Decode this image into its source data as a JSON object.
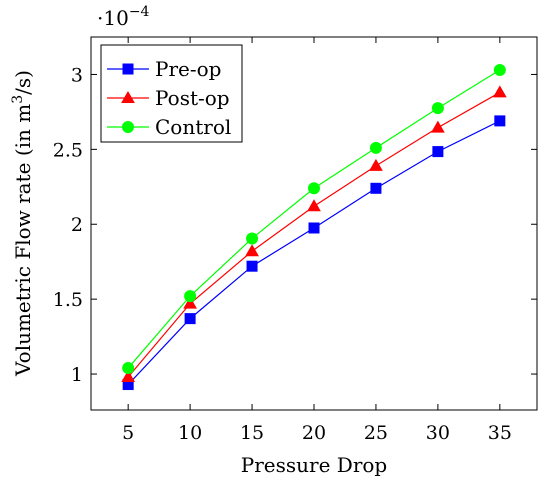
{
  "chart_data": {
    "type": "line",
    "title": "",
    "xlabel": "Pressure Drop",
    "ylabel_prefix": "Volumetric Flow rate (in m",
    "ylabel_sup": "3",
    "ylabel_suffix": "/s)",
    "y_scale_prefix": "·10",
    "y_scale_exp": "−4",
    "x": [
      5,
      10,
      15,
      20,
      25,
      30,
      35
    ],
    "x_tick_labels": [
      "5",
      "10",
      "15",
      "20",
      "25",
      "30",
      "35"
    ],
    "y_ticks": [
      1,
      1.5,
      2,
      2.5,
      3
    ],
    "y_tick_labels": [
      "1",
      "1.5",
      "2",
      "2.5",
      "3"
    ],
    "xlim": [
      2,
      38
    ],
    "ylim": [
      0.76,
      3.25
    ],
    "legend_position": "top-left",
    "grid": false,
    "series": [
      {
        "name": "Pre-op",
        "color": "#0000ff",
        "marker": "square",
        "values": [
          0.93,
          1.37,
          1.72,
          1.975,
          2.24,
          2.485,
          2.69
        ]
      },
      {
        "name": "Post-op",
        "color": "#ff0000",
        "marker": "triangle",
        "values": [
          0.98,
          1.47,
          1.82,
          2.12,
          2.39,
          2.645,
          2.88
        ]
      },
      {
        "name": "Control",
        "color": "#00ff00",
        "marker": "circle",
        "values": [
          1.04,
          1.52,
          1.905,
          2.24,
          2.51,
          2.775,
          3.03
        ]
      }
    ]
  }
}
